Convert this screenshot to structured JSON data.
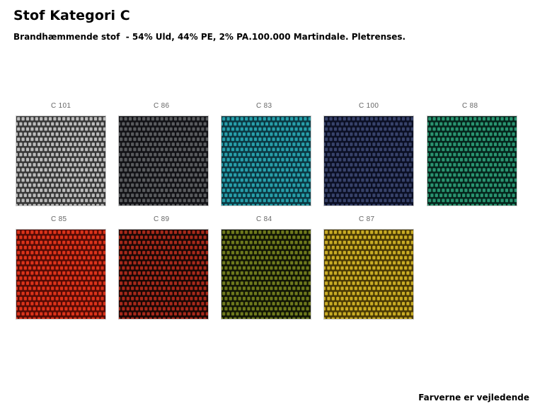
{
  "header": {
    "title": "Stof Kategori C",
    "subtitle": "Brandhæmmende stof  - 54% Uld, 44% PE, 2% PA.100.000 Martindale. Pletrenses."
  },
  "swatches": [
    {
      "code": "C 101",
      "base": "#3c3c3c",
      "cell": "#c6c6c6"
    },
    {
      "code": "C 86",
      "base": "#141418",
      "cell": "#5e6064"
    },
    {
      "code": "C 83",
      "base": "#0c3c46",
      "cell": "#2aa8b4"
    },
    {
      "code": "C 100",
      "base": "#0c1026",
      "cell": "#3a4670"
    },
    {
      "code": "C 88",
      "base": "#06281e",
      "cell": "#2c9c76"
    },
    {
      "code": "C 85",
      "base": "#5a0c06",
      "cell": "#e8361c"
    },
    {
      "code": "C 89",
      "base": "#1c0806",
      "cell": "#b02c1c"
    },
    {
      "code": "C 84",
      "base": "#141806",
      "cell": "#74801e"
    },
    {
      "code": "C 87",
      "base": "#4e3e06",
      "cell": "#d4b626"
    }
  ],
  "footer": {
    "note": "Farverne er vejledende"
  }
}
